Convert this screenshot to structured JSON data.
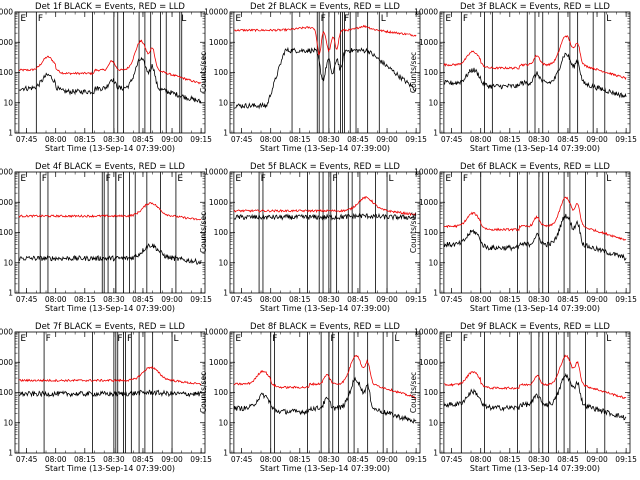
{
  "chart_data": {
    "type": "line",
    "yscale": "log",
    "ylim": [
      1,
      10000
    ],
    "yticks": [
      1,
      10,
      100,
      1000,
      10000
    ],
    "ytick_labels": [
      "1",
      "10",
      "100",
      "1000",
      "10000"
    ],
    "xticks": [
      "07:45",
      "08:00",
      "08:15",
      "08:30",
      "08:45",
      "09:00",
      "09:15"
    ],
    "x_minutes_range": [
      459,
      557
    ],
    "xlabel": "Start Time (13-Sep-14 07:39:00)",
    "ylabel": "Counts/sec",
    "legend_colors": {
      "Events": "#000000",
      "LLD": "#ee0000"
    },
    "panels": [
      {
        "title": "Det 1f BLACK = Events, RED = LLD",
        "events": {
          "base": 30,
          "shape": "hump"
        },
        "lld": {
          "base": 120,
          "shape": "hump"
        },
        "vlines": [
          499,
          510,
          512,
          515,
          523,
          526,
          529,
          534,
          537,
          545
        ],
        "flags": [
          {
            "text": "E",
            "x": 461
          },
          {
            "text": "F",
            "x": 470
          },
          {
            "text": "L",
            "x": 544
          }
        ]
      },
      {
        "title": "Det 2f BLACK = Events, RED = LLD",
        "events": {
          "base": 8,
          "shape": "jump"
        },
        "lld": {
          "base": 2500,
          "shape": "plateau"
        },
        "vlines": [
          491,
          504,
          507,
          510,
          513,
          516,
          518,
          521,
          524,
          530
        ],
        "flags": [
          {
            "text": "E",
            "x": 461
          },
          {
            "text": "F",
            "x": 505
          },
          {
            "text": "F",
            "x": 517
          },
          {
            "text": "L",
            "x": 536
          }
        ]
      },
      {
        "title": "Det 3f BLACK = Events, RED = LLD",
        "events": {
          "base": 45,
          "shape": "hump"
        },
        "lld": {
          "base": 180,
          "shape": "hump"
        },
        "vlines": [
          482,
          486,
          504,
          508,
          512,
          520,
          526,
          530,
          538
        ],
        "flags": [
          {
            "text": "E",
            "x": 461
          },
          {
            "text": "F",
            "x": 470
          },
          {
            "text": "L",
            "x": 544
          }
        ]
      },
      {
        "title": "Det 4f BLACK = Events, RED = LLD",
        "events": {
          "base": 14,
          "shape": "flatrise"
        },
        "lld": {
          "base": 350,
          "shape": "flatrise"
        },
        "vlines": [
          476,
          504,
          507,
          511,
          515,
          518,
          521,
          527,
          534
        ],
        "flags": [
          {
            "text": "E",
            "x": 461
          },
          {
            "text": "F",
            "x": 472
          },
          {
            "text": "F",
            "x": 505
          },
          {
            "text": "F",
            "x": 511
          },
          {
            "text": "E",
            "x": 542
          }
        ]
      },
      {
        "title": "Det 5f BLACK = Events, RED = LLD",
        "events": {
          "base": 320,
          "shape": "flat"
        },
        "lld": {
          "base": 520,
          "shape": "flatrise"
        },
        "vlines": [
          476,
          499,
          505,
          507,
          510,
          514,
          520,
          522,
          526,
          534
        ],
        "flags": [
          {
            "text": "E",
            "x": 461
          },
          {
            "text": "F",
            "x": 474
          },
          {
            "text": "F",
            "x": 511
          },
          {
            "text": "L",
            "x": 540
          }
        ]
      },
      {
        "title": "Det 6f BLACK = Events, RED = LLD",
        "events": {
          "base": 40,
          "shape": "hump"
        },
        "lld": {
          "base": 160,
          "shape": "hump"
        },
        "vlines": [
          480,
          499,
          504,
          510,
          512,
          515,
          523,
          526,
          534
        ],
        "flags": [
          {
            "text": "E",
            "x": 461
          },
          {
            "text": "F",
            "x": 470
          },
          {
            "text": "L",
            "x": 544
          }
        ]
      },
      {
        "title": "Det 7f BLACK = Events, RED = LLD",
        "events": {
          "base": 90,
          "shape": "flat"
        },
        "lld": {
          "base": 250,
          "shape": "flatrise"
        },
        "vlines": [
          499,
          510,
          512,
          515,
          519,
          523,
          526,
          530
        ],
        "flags": [
          {
            "text": "E",
            "x": 461
          },
          {
            "text": "F",
            "x": 474
          },
          {
            "text": "F",
            "x": 511
          },
          {
            "text": "F",
            "x": 516
          },
          {
            "text": "L",
            "x": 540
          }
        ]
      },
      {
        "title": "Det 8f BLACK = Events, RED = LLD",
        "events": {
          "base": 30,
          "shape": "hump"
        },
        "lld": {
          "base": 190,
          "shape": "hump"
        },
        "vlines": [
          482,
          499,
          506,
          510,
          512,
          515,
          520,
          523,
          530,
          538
        ],
        "flags": [
          {
            "text": "E",
            "x": 461
          },
          {
            "text": "F",
            "x": 480
          },
          {
            "text": "F",
            "x": 510
          },
          {
            "text": "L",
            "x": 543
          }
        ]
      },
      {
        "title": "Det 9f BLACK = Events, RED = LLD",
        "events": {
          "base": 40,
          "shape": "hump"
        },
        "lld": {
          "base": 180,
          "shape": "hump"
        },
        "vlines": [
          482,
          499,
          506,
          510,
          512,
          515,
          519,
          523,
          526,
          534
        ],
        "flags": [
          {
            "text": "E",
            "x": 461
          },
          {
            "text": "F",
            "x": 470
          },
          {
            "text": "L",
            "x": 544
          }
        ]
      }
    ]
  }
}
